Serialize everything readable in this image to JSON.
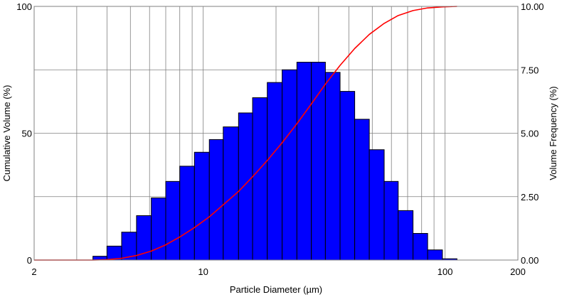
{
  "chart_data": {
    "type": "bar",
    "x_scale": "log",
    "xlim": [
      2,
      200
    ],
    "xlabel": "Particle Diameter (µm)",
    "x_tick_labels": [
      {
        "value": 2,
        "label": "2"
      },
      {
        "value": 10,
        "label": "10"
      },
      {
        "value": 100,
        "label": "100"
      },
      {
        "value": 200,
        "label": "200"
      }
    ],
    "y_left": {
      "label": "Cumulative Volume (%)",
      "lim": [
        0,
        100
      ],
      "ticks": [
        {
          "value": 0,
          "label": "0"
        },
        {
          "value": 50,
          "label": "50"
        },
        {
          "value": 100,
          "label": "100"
        }
      ]
    },
    "y_right": {
      "label": "Volume Frequency (%)",
      "lim": [
        0,
        10
      ],
      "ticks": [
        {
          "value": 0,
          "label": "0.00"
        },
        {
          "value": 2.5,
          "label": "2.50"
        },
        {
          "value": 5,
          "label": "5.00"
        },
        {
          "value": 7.5,
          "label": "7.50"
        },
        {
          "value": 10,
          "label": "10.00"
        }
      ]
    },
    "grid": true,
    "series": [
      {
        "type": "bar",
        "axis": "right",
        "color": "#0000ff",
        "bins": [
          {
            "x0": 3.5,
            "x1": 4.0,
            "value": 0.15
          },
          {
            "x0": 4.0,
            "x1": 4.6,
            "value": 0.55
          },
          {
            "x0": 4.6,
            "x1": 5.3,
            "value": 1.1
          },
          {
            "x0": 5.3,
            "x1": 6.1,
            "value": 1.75
          },
          {
            "x0": 6.1,
            "x1": 7.0,
            "value": 2.45
          },
          {
            "x0": 7.0,
            "x1": 8.0,
            "value": 3.1
          },
          {
            "x0": 8.0,
            "x1": 9.2,
            "value": 3.7
          },
          {
            "x0": 9.2,
            "x1": 10.6,
            "value": 4.25
          },
          {
            "x0": 10.6,
            "x1": 12.1,
            "value": 4.75
          },
          {
            "x0": 12.1,
            "x1": 14.0,
            "value": 5.25
          },
          {
            "x0": 14.0,
            "x1": 16.0,
            "value": 5.8
          },
          {
            "x0": 16.0,
            "x1": 18.4,
            "value": 6.4
          },
          {
            "x0": 18.4,
            "x1": 21.2,
            "value": 7.0
          },
          {
            "x0": 21.2,
            "x1": 24.4,
            "value": 7.5
          },
          {
            "x0": 24.4,
            "x1": 28.0,
            "value": 7.8
          },
          {
            "x0": 28.0,
            "x1": 32.0,
            "value": 7.8
          },
          {
            "x0": 32.0,
            "x1": 36.8,
            "value": 7.4
          },
          {
            "x0": 36.8,
            "x1": 42.3,
            "value": 6.65
          },
          {
            "x0": 42.3,
            "x1": 48.6,
            "value": 5.55
          },
          {
            "x0": 48.6,
            "x1": 56.0,
            "value": 4.35
          },
          {
            "x0": 56.0,
            "x1": 64.0,
            "value": 3.1
          },
          {
            "x0": 64.0,
            "x1": 73.7,
            "value": 1.95
          },
          {
            "x0": 73.7,
            "x1": 84.7,
            "value": 1.05
          },
          {
            "x0": 84.7,
            "x1": 97.5,
            "value": 0.4
          },
          {
            "x0": 97.5,
            "x1": 112.0,
            "value": 0.05
          }
        ]
      },
      {
        "type": "line",
        "axis": "left",
        "color": "#ff0000",
        "points": [
          [
            2.0,
            0
          ],
          [
            3.5,
            0
          ],
          [
            4.0,
            0.15
          ],
          [
            4.6,
            0.7
          ],
          [
            5.3,
            1.8
          ],
          [
            6.1,
            3.55
          ],
          [
            7.0,
            6.0
          ],
          [
            8.0,
            9.1
          ],
          [
            9.2,
            12.8
          ],
          [
            10.6,
            17.05
          ],
          [
            12.1,
            21.8
          ],
          [
            14.0,
            27.05
          ],
          [
            16.0,
            32.85
          ],
          [
            18.4,
            39.25
          ],
          [
            21.2,
            46.25
          ],
          [
            24.4,
            53.75
          ],
          [
            28.0,
            61.55
          ],
          [
            32.0,
            69.35
          ],
          [
            36.8,
            76.75
          ],
          [
            42.3,
            83.4
          ],
          [
            48.6,
            88.95
          ],
          [
            56.0,
            93.3
          ],
          [
            64.0,
            96.4
          ],
          [
            73.7,
            98.35
          ],
          [
            84.7,
            99.4
          ],
          [
            97.5,
            99.8
          ],
          [
            112.0,
            100
          ]
        ]
      }
    ]
  }
}
